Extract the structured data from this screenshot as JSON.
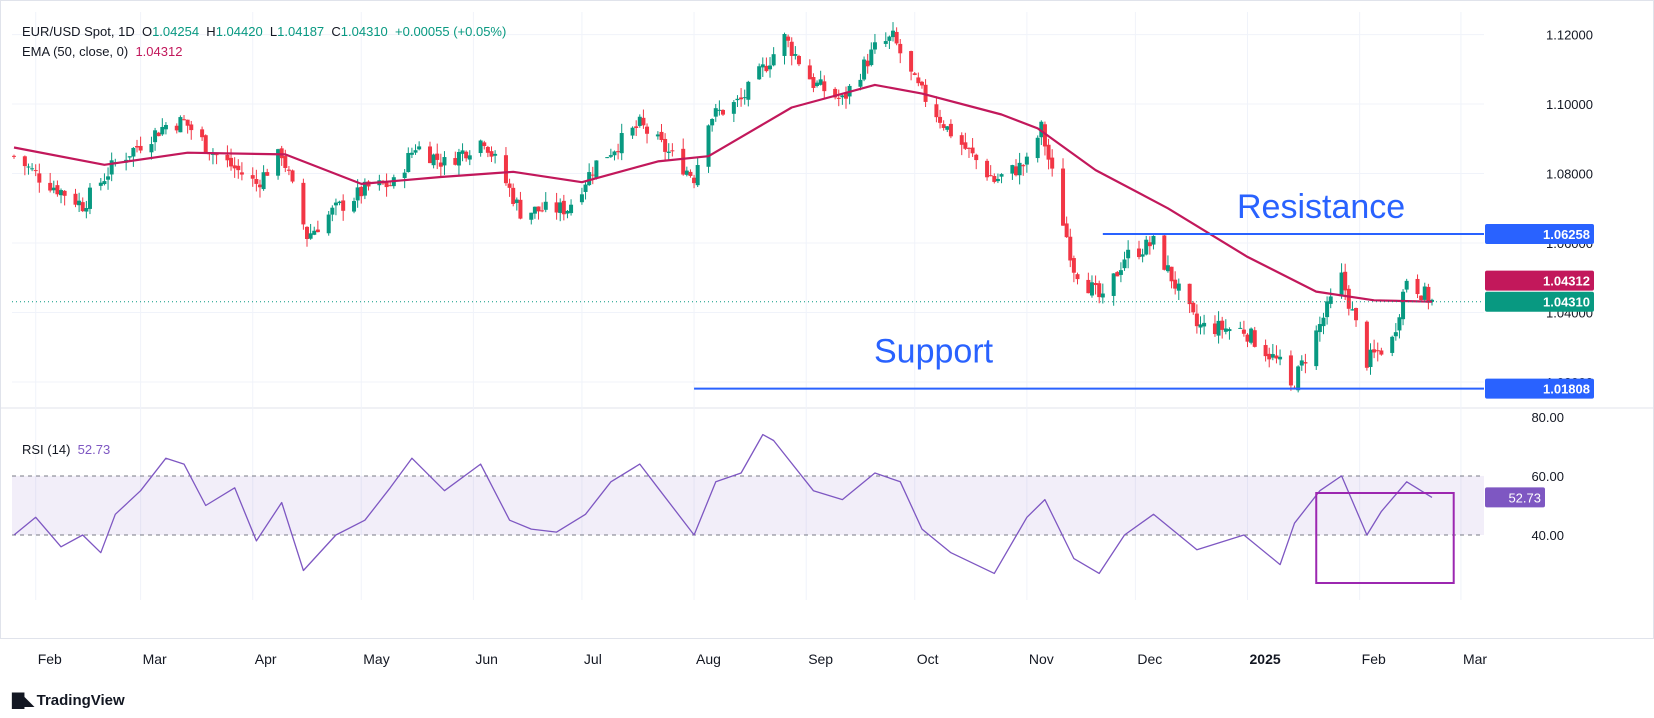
{
  "header": {
    "symbol": "EUR/USD Spot, 1D",
    "o_label": "O",
    "o": "1.04254",
    "h_label": "H",
    "h": "1.04420",
    "l_label": "L",
    "l": "1.04187",
    "c_label": "C",
    "c": "1.04310",
    "change": "+0.00055 (+0.05%)"
  },
  "ema_legend": {
    "label": "EMA (50, close, 0)",
    "value": "1.04312"
  },
  "rsi_legend": {
    "label": "RSI (14)",
    "value": "52.73"
  },
  "brand": {
    "name": "TradingView",
    "icon": "tradingview-logo-icon"
  },
  "colors": {
    "up": "#089981",
    "down": "#f23645",
    "ema": "#c2185b",
    "rsi": "#7e57c2",
    "annotation": "#2962ff",
    "rsi_box": "#9c27b0",
    "grid": "#f0f3fa"
  },
  "chart_data": [
    {
      "type": "candlestick",
      "title": "EUR/USD Spot, 1D",
      "y_axis_ticks": [
        "1.12000",
        "1.10000",
        "1.08000",
        "1.06000",
        "1.04000",
        "1.02000"
      ],
      "ylim": [
        1.0125,
        1.1265
      ],
      "x_axis_ticks": [
        "Feb",
        "Mar",
        "Apr",
        "May",
        "Jun",
        "Jul",
        "Aug",
        "Sep",
        "Oct",
        "Nov",
        "Dec",
        "2025",
        "Feb",
        "Mar"
      ],
      "date_range": [
        "2024-01-26",
        "2025-02-21"
      ],
      "close_path": [
        [
          "2024-01-26",
          1.085
        ],
        [
          "2024-02-02",
          1.079
        ],
        [
          "2024-02-14",
          1.071
        ],
        [
          "2024-02-23",
          1.083
        ],
        [
          "2024-03-08",
          1.094
        ],
        [
          "2024-03-13",
          1.095
        ],
        [
          "2024-03-21",
          1.086
        ],
        [
          "2024-04-02",
          1.077
        ],
        [
          "2024-04-09",
          1.086
        ],
        [
          "2024-04-16",
          1.062
        ],
        [
          "2024-04-23",
          1.069
        ],
        [
          "2024-05-03",
          1.076
        ],
        [
          "2024-05-10",
          1.077
        ],
        [
          "2024-05-16",
          1.088
        ],
        [
          "2024-05-24",
          1.083
        ],
        [
          "2024-06-04",
          1.09
        ],
        [
          "2024-06-14",
          1.069
        ],
        [
          "2024-06-27",
          1.07
        ],
        [
          "2024-07-05",
          1.083
        ],
        [
          "2024-07-17",
          1.094
        ],
        [
          "2024-08-01",
          1.079
        ],
        [
          "2024-08-05",
          1.096
        ],
        [
          "2024-08-14",
          1.101
        ],
        [
          "2024-08-26",
          1.119
        ],
        [
          "2024-09-03",
          1.106
        ],
        [
          "2024-09-11",
          1.101
        ],
        [
          "2024-09-20",
          1.116
        ],
        [
          "2024-09-25",
          1.119
        ],
        [
          "2024-10-01",
          1.106
        ],
        [
          "2024-10-10",
          1.093
        ],
        [
          "2024-10-23",
          1.078
        ],
        [
          "2024-11-01",
          1.083
        ],
        [
          "2024-11-05",
          1.093
        ],
        [
          "2024-11-14",
          1.053
        ],
        [
          "2024-11-22",
          1.043
        ],
        [
          "2024-11-28",
          1.056
        ],
        [
          "2024-12-06",
          1.06
        ],
        [
          "2024-12-18",
          1.036
        ],
        [
          "2024-12-31",
          1.035
        ],
        [
          "2025-01-10",
          1.025
        ],
        [
          "2025-01-13",
          1.018
        ],
        [
          "2025-01-27",
          1.05
        ],
        [
          "2025-02-03",
          1.026
        ],
        [
          "2025-02-10",
          1.032
        ],
        [
          "2025-02-14",
          1.05
        ],
        [
          "2025-02-21",
          1.0431
        ]
      ],
      "ema_path": [
        [
          "2024-01-26",
          1.0875
        ],
        [
          "2024-02-20",
          1.0825
        ],
        [
          "2024-03-14",
          1.086
        ],
        [
          "2024-04-10",
          1.0855
        ],
        [
          "2024-05-01",
          1.077
        ],
        [
          "2024-05-23",
          1.079
        ],
        [
          "2024-06-12",
          1.0805
        ],
        [
          "2024-07-01",
          1.0775
        ],
        [
          "2024-07-22",
          1.0835
        ],
        [
          "2024-08-05",
          1.085
        ],
        [
          "2024-08-28",
          1.099
        ],
        [
          "2024-09-20",
          1.1055
        ],
        [
          "2024-10-03",
          1.103
        ],
        [
          "2024-10-25",
          1.097
        ],
        [
          "2024-11-04",
          1.093
        ],
        [
          "2024-11-20",
          1.081
        ],
        [
          "2024-12-10",
          1.07
        ],
        [
          "2025-01-01",
          1.056
        ],
        [
          "2025-01-20",
          1.046
        ],
        [
          "2025-02-05",
          1.0435
        ],
        [
          "2025-02-21",
          1.0431
        ]
      ],
      "last_close": "1.04310",
      "ema_value": "1.04312",
      "annotations": [
        {
          "label": "Resistance",
          "level": 1.06258,
          "level_label": "1.06258",
          "from": "2024-11-22"
        },
        {
          "label": "Support",
          "level": 1.01808,
          "level_label": "1.01808",
          "from": "2024-08-01"
        }
      ]
    },
    {
      "type": "line",
      "title": "RSI (14)",
      "y_axis_ticks": [
        "80.00",
        "60.00",
        "40.00"
      ],
      "ylim": [
        18,
        83
      ],
      "bands": [
        40,
        60
      ],
      "last_value": "52.73",
      "series": [
        {
          "values": [
            [
              "2024-01-26",
              40
            ],
            [
              "2024-02-01",
              46
            ],
            [
              "2024-02-08",
              36
            ],
            [
              "2024-02-14",
              40
            ],
            [
              "2024-02-19",
              34
            ],
            [
              "2024-02-23",
              47
            ],
            [
              "2024-03-01",
              55
            ],
            [
              "2024-03-08",
              66
            ],
            [
              "2024-03-13",
              64
            ],
            [
              "2024-03-19",
              50
            ],
            [
              "2024-03-27",
              56
            ],
            [
              "2024-04-02",
              38
            ],
            [
              "2024-04-09",
              51
            ],
            [
              "2024-04-15",
              28
            ],
            [
              "2024-04-24",
              40
            ],
            [
              "2024-05-02",
              45
            ],
            [
              "2024-05-09",
              56
            ],
            [
              "2024-05-15",
              66
            ],
            [
              "2024-05-24",
              55
            ],
            [
              "2024-06-03",
              64
            ],
            [
              "2024-06-11",
              45
            ],
            [
              "2024-06-17",
              42
            ],
            [
              "2024-06-24",
              41
            ],
            [
              "2024-07-02",
              47
            ],
            [
              "2024-07-09",
              58
            ],
            [
              "2024-07-17",
              64
            ],
            [
              "2024-07-22",
              56
            ],
            [
              "2024-08-01",
              40
            ],
            [
              "2024-08-07",
              58
            ],
            [
              "2024-08-14",
              61
            ],
            [
              "2024-08-20",
              74
            ],
            [
              "2024-08-23",
              72
            ],
            [
              "2024-09-03",
              55
            ],
            [
              "2024-09-11",
              52
            ],
            [
              "2024-09-20",
              61
            ],
            [
              "2024-09-27",
              58
            ],
            [
              "2024-10-03",
              42
            ],
            [
              "2024-10-11",
              34
            ],
            [
              "2024-10-23",
              27
            ],
            [
              "2024-11-01",
              46
            ],
            [
              "2024-11-06",
              52
            ],
            [
              "2024-11-14",
              32
            ],
            [
              "2024-11-21",
              27
            ],
            [
              "2024-11-28",
              40
            ],
            [
              "2024-12-06",
              47
            ],
            [
              "2024-12-18",
              35
            ],
            [
              "2024-12-31",
              40
            ],
            [
              "2025-01-10",
              30
            ],
            [
              "2025-01-14",
              44
            ],
            [
              "2025-01-21",
              55
            ],
            [
              "2025-01-27",
              60
            ],
            [
              "2025-02-03",
              40
            ],
            [
              "2025-02-07",
              48
            ],
            [
              "2025-02-14",
              58
            ],
            [
              "2025-02-21",
              52.73
            ]
          ]
        }
      ]
    }
  ]
}
